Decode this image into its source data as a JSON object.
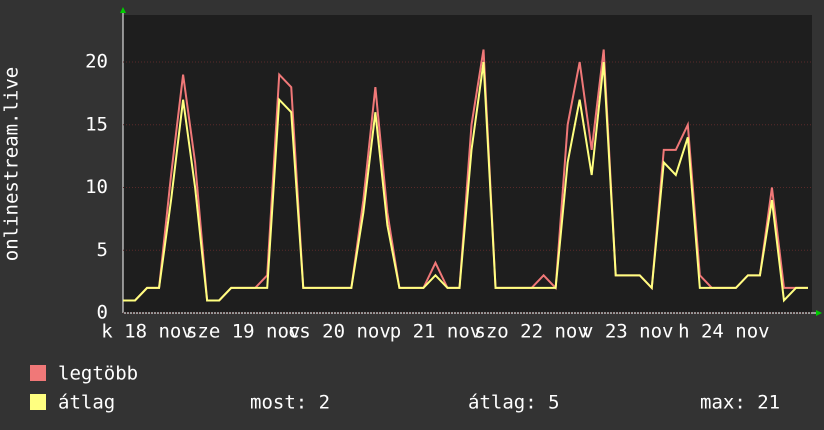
{
  "chart_data": {
    "type": "line",
    "y_label": "onlinestream.live",
    "x": [
      0,
      3,
      6,
      9,
      12,
      15,
      18,
      21,
      24,
      27,
      30,
      33,
      36,
      39,
      42,
      45,
      48,
      51,
      54,
      57,
      60,
      63,
      66,
      69,
      72,
      75,
      78,
      81,
      84,
      87,
      90,
      93,
      96,
      99,
      102,
      105,
      108,
      111,
      114,
      117,
      120,
      123,
      126,
      129,
      132,
      135,
      138,
      141,
      144,
      147,
      150,
      153,
      156,
      159,
      162,
      165,
      168,
      171
    ],
    "xlim": [
      0,
      172
    ],
    "xticks": [
      {
        "value": 6,
        "label": "k 18 nov"
      },
      {
        "value": 30,
        "label": "sze 19 nov"
      },
      {
        "value": 54,
        "label": "cs 20 nov"
      },
      {
        "value": 78,
        "label": "p 21 nov"
      },
      {
        "value": 102,
        "label": "szo 22 nov"
      },
      {
        "value": 126,
        "label": "v 23 nov"
      },
      {
        "value": 150,
        "label": "h 24 nov"
      }
    ],
    "ylim": [
      0,
      23.75
    ],
    "yticks": [
      0,
      5,
      10,
      15,
      20
    ],
    "grid": true,
    "series": [
      {
        "name": "legtöbb",
        "color": "#f07878",
        "values": [
          1,
          1,
          2,
          2,
          11,
          19,
          12,
          1,
          1,
          2,
          2,
          2,
          3,
          19,
          18,
          2,
          2,
          2,
          2,
          2,
          9,
          18,
          8,
          2,
          2,
          2,
          4,
          2,
          2,
          15,
          21,
          2,
          2,
          2,
          2,
          3,
          2,
          15,
          20,
          13,
          21,
          3,
          3,
          3,
          2,
          13,
          13,
          15,
          3,
          2,
          2,
          2,
          3,
          3,
          10,
          2,
          2,
          2
        ]
      },
      {
        "name": "átlag",
        "color": "#ffff80",
        "values": [
          1,
          1,
          2,
          2,
          9,
          17,
          10,
          1,
          1,
          2,
          2,
          2,
          2,
          17,
          16,
          2,
          2,
          2,
          2,
          2,
          8,
          16,
          7,
          2,
          2,
          2,
          3,
          2,
          2,
          13,
          20,
          2,
          2,
          2,
          2,
          2,
          2,
          12,
          17,
          11,
          20,
          3,
          3,
          3,
          2,
          12,
          11,
          14,
          2,
          2,
          2,
          2,
          3,
          3,
          9,
          1,
          2,
          2
        ]
      }
    ],
    "stats": [
      "most: 2",
      "átlag: 5",
      "max: 21"
    ]
  }
}
